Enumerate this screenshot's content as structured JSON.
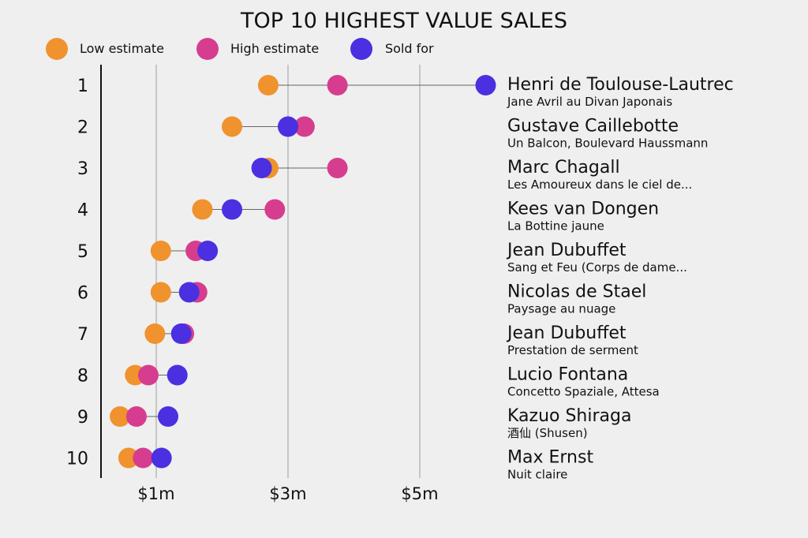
{
  "chart_data": {
    "type": "dot-plot",
    "title": "TOP 10 HIGHEST VALUE SALES",
    "legend": [
      {
        "key": "low",
        "label": "Low estimate",
        "color": "#f0922e"
      },
      {
        "key": "high",
        "label": "High estimate",
        "color": "#d63d8f"
      },
      {
        "key": "sold",
        "label": "Sold for",
        "color": "#4a30e0"
      }
    ],
    "x_ticks": [
      {
        "value": 1,
        "label": "$1m"
      },
      {
        "value": 3,
        "label": "$3m"
      },
      {
        "value": 5,
        "label": "$5m"
      }
    ],
    "xlim": [
      0.15,
      6.2
    ],
    "unit": "$m",
    "rows": [
      {
        "rank": "1",
        "artist": "Henri de Toulouse-Lautrec",
        "work": "Jane Avril au Divan Japonais",
        "low": 2.7,
        "high": 3.75,
        "sold": 6.0
      },
      {
        "rank": "2",
        "artist": "Gustave Caillebotte",
        "work": "Un Balcon, Boulevard Haussmann",
        "low": 2.15,
        "high": 3.25,
        "sold": 3.0
      },
      {
        "rank": "3",
        "artist": "Marc Chagall",
        "work": "Les Amoureux dans le ciel de...",
        "low": 2.7,
        "high": 3.75,
        "sold": 2.6
      },
      {
        "rank": "4",
        "artist": "Kees van Dongen",
        "work": "La Bottine jaune",
        "low": 1.7,
        "high": 2.8,
        "sold": 2.15
      },
      {
        "rank": "5",
        "artist": "Jean Dubuffet",
        "work": "Sang et Feu (Corps de dame...",
        "low": 1.07,
        "high": 1.6,
        "sold": 1.78
      },
      {
        "rank": "6",
        "artist": "Nicolas de Stael",
        "work": "Paysage au nuage",
        "low": 1.07,
        "high": 1.62,
        "sold": 1.5
      },
      {
        "rank": "7",
        "artist": "Jean Dubuffet",
        "work": "Prestation de serment",
        "low": 0.98,
        "high": 1.42,
        "sold": 1.38
      },
      {
        "rank": "8",
        "artist": "Lucio Fontana",
        "work": "Concetto Spaziale, Attesa",
        "low": 0.68,
        "high": 0.88,
        "sold": 1.32
      },
      {
        "rank": "9",
        "artist": "Kazuo Shiraga",
        "work": "酒仙 (Shusen)",
        "low": 0.45,
        "high": 0.7,
        "sold": 1.18
      },
      {
        "rank": "10",
        "artist": "Max Ernst",
        "work": "Nuit claire",
        "low": 0.58,
        "high": 0.8,
        "sold": 1.08
      }
    ]
  }
}
